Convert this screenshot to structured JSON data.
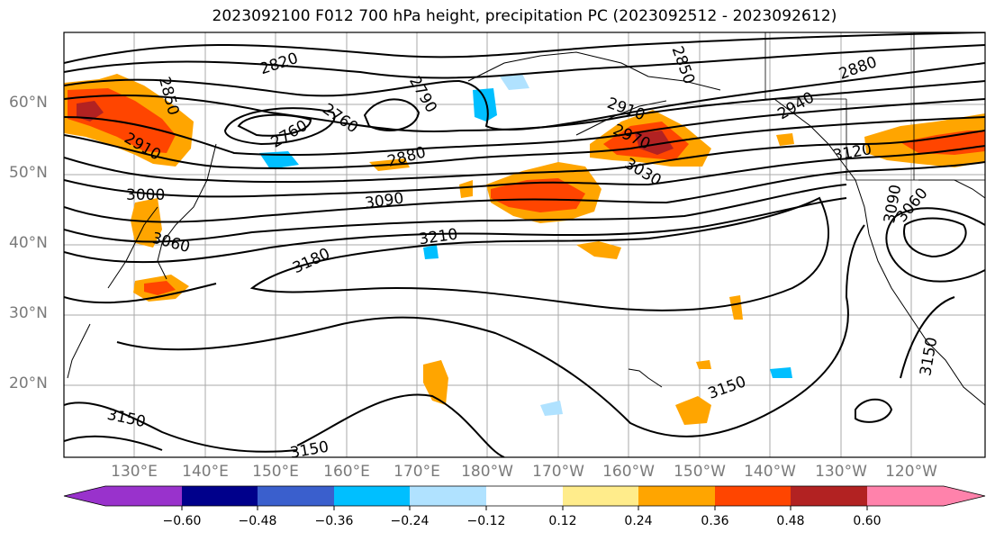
{
  "title": "2023092100 F012 700 hPa height, precipitation PC (2023092512 - 2023092612)",
  "lat_labels": [
    "60°N",
    "50°N",
    "40°N",
    "30°N",
    "20°N"
  ],
  "lon_labels": [
    "130°E",
    "140°E",
    "150°E",
    "160°E",
    "170°E",
    "180°W",
    "170°W",
    "160°W",
    "150°W",
    "140°W",
    "130°W",
    "120°W"
  ],
  "colorbar": {
    "ticks": [
      "−0.60",
      "−0.48",
      "−0.36",
      "−0.24",
      "−0.12",
      "0.12",
      "0.24",
      "0.36",
      "0.48",
      "0.60"
    ],
    "colors": [
      "#9932cc",
      "#00008b",
      "#3a5fcd",
      "#00bfff",
      "#b0e2ff",
      "#ffffff",
      "#ffec8b",
      "#ffa500",
      "#ff4500",
      "#b22222",
      "#ff82ab"
    ]
  },
  "contour_labels": [
    "2820",
    "2850",
    "2850",
    "2760",
    "2760",
    "2790",
    "2880",
    "2910",
    "2910",
    "2940",
    "2970",
    "3000",
    "3030",
    "3060",
    "3060",
    "3090",
    "3090",
    "3120",
    "3150",
    "3150",
    "3150",
    "3150",
    "3180",
    "3210",
    "2880"
  ]
}
